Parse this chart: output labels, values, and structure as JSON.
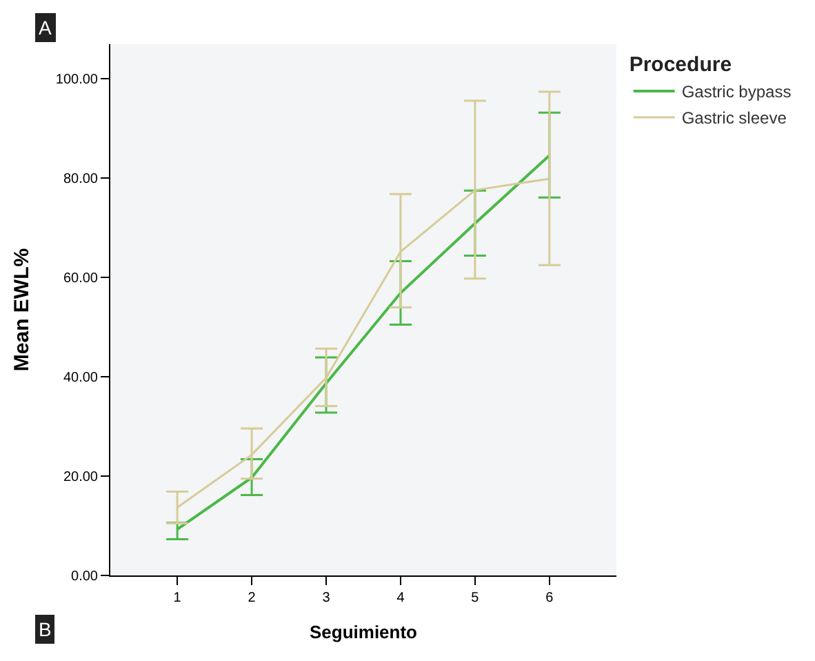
{
  "chart_data": {
    "type": "line",
    "xlabel": "Seguimiento",
    "ylabel": "Mean EWL%",
    "legend_title": "Procedure",
    "x": [
      1,
      2,
      3,
      4,
      5,
      6
    ],
    "xlim": [
      0.1,
      6.9
    ],
    "xticks": [
      1,
      2,
      3,
      4,
      5,
      6
    ],
    "ylim": [
      0,
      107
    ],
    "yticks": [
      {
        "value": 0,
        "label": "0.00"
      },
      {
        "value": 20,
        "label": "20.00"
      },
      {
        "value": 40,
        "label": "40.00"
      },
      {
        "value": 60,
        "label": "60.00"
      },
      {
        "value": 80,
        "label": "80.00"
      },
      {
        "value": 100,
        "label": "100.00"
      }
    ],
    "series": [
      {
        "name": "Gastric bypass",
        "color": "#4cb848",
        "values": [
          9.3,
          19.7,
          38.7,
          56.9,
          70.9,
          84.6
        ],
        "errors": [
          [
            7.3,
            10.6
          ],
          [
            16.2,
            23.4
          ],
          [
            32.8,
            43.9
          ],
          [
            50.5,
            63.3
          ],
          [
            64.4,
            77.5
          ],
          [
            76.1,
            93.2
          ]
        ]
      },
      {
        "name": "Gastric sleeve",
        "color": "#d6cc98",
        "values": [
          13.7,
          24.3,
          39.8,
          65.2,
          77.6,
          79.9
        ],
        "errors": [
          [
            10.5,
            16.9
          ],
          [
            19.5,
            29.6
          ],
          [
            34.1,
            45.7
          ],
          [
            54.0,
            76.8
          ],
          [
            59.8,
            95.6
          ],
          [
            62.5,
            97.4
          ]
        ]
      }
    ],
    "grid": false,
    "legend": "top right",
    "marker": "none",
    "line_style": "solid",
    "annotations": [
      "A",
      "B"
    ]
  }
}
